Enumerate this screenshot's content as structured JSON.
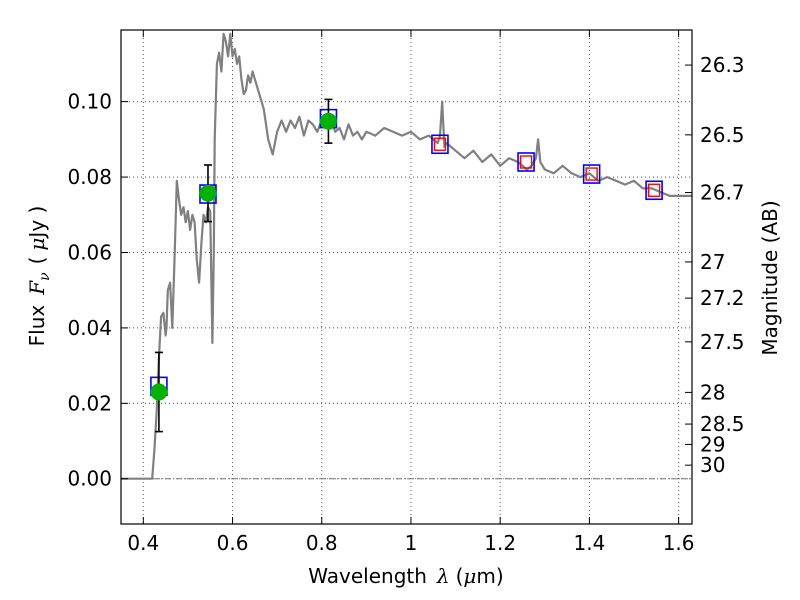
{
  "chart_data": {
    "type": "line",
    "xlabel_text": "Wavelength",
    "xlabel_symbol": "λ",
    "xlabel_unit_open": "(",
    "xlabel_unit_mu": "μ",
    "xlabel_unit_rest": "m)",
    "ylabel_text": "Flux",
    "ylabel_symbol": "F",
    "ylabel_subscript": "ν",
    "ylabel_unit_open": "(",
    "ylabel_unit_mu": "μ",
    "ylabel_unit_rest": "Jy )",
    "ylabel_right": "Magnitude (AB)",
    "xlim": [
      0.35,
      1.63
    ],
    "ylim": [
      -0.012,
      0.119
    ],
    "grid": true,
    "x_ticks": [
      0.4,
      0.6,
      0.8,
      1.0,
      1.2,
      1.4,
      1.6
    ],
    "x_tick_labels": [
      "0.4",
      "0.6",
      "0.8",
      "1",
      "1.2",
      "1.4",
      "1.6"
    ],
    "y_ticks": [
      0.0,
      0.02,
      0.04,
      0.06,
      0.08,
      0.1
    ],
    "y_tick_labels": [
      "0.00",
      "0.02",
      "0.04",
      "0.06",
      "0.08",
      "0.10"
    ],
    "right_ticks": [
      {
        "label": "26.3",
        "flux": 0.1097
      },
      {
        "label": "26.5",
        "flux": 0.0912
      },
      {
        "label": "26.7",
        "flux": 0.0759
      },
      {
        "label": "27",
        "flux": 0.0575
      },
      {
        "label": "27.2",
        "flux": 0.0479
      },
      {
        "label": "27.5",
        "flux": 0.0363
      },
      {
        "label": "28",
        "flux": 0.0229
      },
      {
        "label": "28.5",
        "flux": 0.0145
      },
      {
        "label": "29",
        "flux": 0.0091
      },
      {
        "label": "30",
        "flux": 0.0036
      }
    ],
    "series": [
      {
        "kind": "spectrum",
        "color": "#808080",
        "x": [
          0.35,
          0.38,
          0.4,
          0.41,
          0.42,
          0.425,
          0.43,
          0.435,
          0.44,
          0.445,
          0.45,
          0.452,
          0.455,
          0.46,
          0.465,
          0.47,
          0.475,
          0.48,
          0.485,
          0.49,
          0.495,
          0.5,
          0.505,
          0.51,
          0.515,
          0.52,
          0.525,
          0.53,
          0.535,
          0.54,
          0.545,
          0.55,
          0.555,
          0.558,
          0.56,
          0.565,
          0.57,
          0.575,
          0.58,
          0.585,
          0.59,
          0.595,
          0.6,
          0.605,
          0.61,
          0.615,
          0.62,
          0.625,
          0.63,
          0.635,
          0.64,
          0.645,
          0.65,
          0.66,
          0.67,
          0.68,
          0.685,
          0.69,
          0.7,
          0.71,
          0.72,
          0.73,
          0.74,
          0.75,
          0.76,
          0.77,
          0.78,
          0.79,
          0.8,
          0.81,
          0.82,
          0.83,
          0.84,
          0.85,
          0.86,
          0.87,
          0.88,
          0.89,
          0.9,
          0.92,
          0.94,
          0.96,
          0.98,
          1.0,
          1.02,
          1.04,
          1.06,
          1.065,
          1.07,
          1.075,
          1.08,
          1.1,
          1.12,
          1.14,
          1.16,
          1.18,
          1.2,
          1.22,
          1.24,
          1.26,
          1.27,
          1.28,
          1.285,
          1.29,
          1.3,
          1.32,
          1.34,
          1.36,
          1.38,
          1.4,
          1.42,
          1.44,
          1.46,
          1.48,
          1.5,
          1.52,
          1.54,
          1.56,
          1.58,
          1.6,
          1.63
        ],
        "y": [
          0.0,
          0.0,
          0.0,
          0.0,
          0.0,
          0.008,
          0.018,
          0.032,
          0.043,
          0.044,
          0.038,
          0.04,
          0.05,
          0.052,
          0.04,
          0.058,
          0.079,
          0.074,
          0.07,
          0.072,
          0.068,
          0.071,
          0.066,
          0.07,
          0.068,
          0.058,
          0.052,
          0.062,
          0.07,
          0.068,
          0.072,
          0.071,
          0.036,
          0.06,
          0.09,
          0.11,
          0.113,
          0.108,
          0.118,
          0.116,
          0.112,
          0.118,
          0.112,
          0.114,
          0.11,
          0.112,
          0.106,
          0.102,
          0.103,
          0.107,
          0.105,
          0.108,
          0.106,
          0.102,
          0.098,
          0.09,
          0.088,
          0.086,
          0.092,
          0.095,
          0.092,
          0.095,
          0.093,
          0.096,
          0.091,
          0.095,
          0.094,
          0.092,
          0.095,
          0.093,
          0.096,
          0.092,
          0.093,
          0.09,
          0.094,
          0.091,
          0.092,
          0.09,
          0.092,
          0.091,
          0.093,
          0.092,
          0.091,
          0.092,
          0.09,
          0.091,
          0.089,
          0.091,
          0.1,
          0.088,
          0.089,
          0.087,
          0.085,
          0.087,
          0.084,
          0.086,
          0.083,
          0.085,
          0.084,
          0.082,
          0.083,
          0.085,
          0.09,
          0.084,
          0.082,
          0.081,
          0.083,
          0.081,
          0.08,
          0.081,
          0.079,
          0.08,
          0.079,
          0.078,
          0.079,
          0.077,
          0.077,
          0.076,
          0.075,
          0.075,
          0.075
        ]
      },
      {
        "kind": "model_box",
        "color": "#0000ff",
        "x": [
          0.435,
          0.545,
          0.815,
          1.065,
          1.258,
          1.405,
          1.545
        ],
        "y": [
          0.0245,
          0.0755,
          0.0955,
          0.0887,
          0.084,
          0.0808,
          0.0765
        ]
      },
      {
        "kind": "observed_box",
        "color": "#ff0000",
        "x": [
          1.065,
          1.258,
          1.405,
          1.545
        ],
        "y": [
          0.0887,
          0.084,
          0.0808,
          0.0765
        ]
      },
      {
        "kind": "photometry",
        "color": "#00b300",
        "x": [
          0.435,
          0.545,
          0.815
        ],
        "y": [
          0.023,
          0.0757,
          0.0948
        ],
        "yerr": [
          0.0105,
          0.0075,
          0.0058
        ]
      }
    ]
  }
}
